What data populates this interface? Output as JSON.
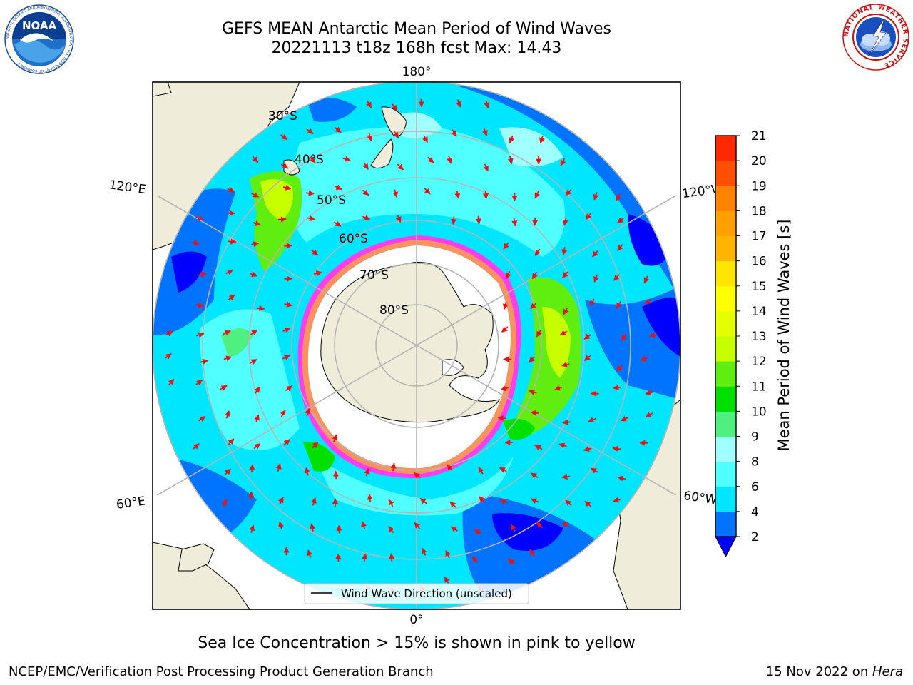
{
  "header": {
    "title_line1": "GEFS MEAN Antarctic Mean Period of Wind Waves",
    "title_line2": "20221113 t18z 168h fcst   Max: 14.43"
  },
  "logos": {
    "left": "NOAA",
    "left_ring_text": "NATIONAL OCEANIC AND ATMOSPHERIC ADMINISTRATION · U.S. DEPARTMENT OF COMMERCE",
    "right_ring_text": "NATIONAL WEATHER SERVICE"
  },
  "map": {
    "projection": "south polar stereographic",
    "longitude_labels": {
      "top": "180°",
      "bottom": "0°",
      "upper_left": "120°E",
      "upper_right": "120°W",
      "lower_left": "60°E",
      "lower_right": "60°W"
    },
    "latitude_labels": [
      "30°S",
      "40°S",
      "50°S",
      "60°S",
      "70°S",
      "80°S"
    ],
    "legend_label": "Wind Wave Direction (unscaled)",
    "colors": {
      "land": "#efedda",
      "ice_fill": "#ffffff",
      "ice_edge_pink": "#ff3cf0",
      "ice_edge_yellow": "#f5b030",
      "arrow": "#ee1111",
      "grid": "#b5b5b5"
    }
  },
  "colorbar": {
    "label": "Mean Period of Wind Waves [s]",
    "ticks": [
      "2",
      "4",
      "6",
      "8",
      "9",
      "10",
      "11",
      "12",
      "13",
      "14",
      "15",
      "16",
      "17",
      "18",
      "19",
      "20",
      "21"
    ],
    "bins": [
      {
        "from": 2,
        "to": 4,
        "color": "#0073ff"
      },
      {
        "from": 4,
        "to": 6,
        "color": "#00e6ff"
      },
      {
        "from": 6,
        "to": 8,
        "color": "#50ffff"
      },
      {
        "from": 8,
        "to": 9,
        "color": "#a0ffff"
      },
      {
        "from": 9,
        "to": 10,
        "color": "#50f080"
      },
      {
        "from": 10,
        "to": 11,
        "color": "#00e000"
      },
      {
        "from": 11,
        "to": 12,
        "color": "#60ee10"
      },
      {
        "from": 12,
        "to": 13,
        "color": "#c8ff00"
      },
      {
        "from": 13,
        "to": 14,
        "color": "#e6ff00"
      },
      {
        "from": 14,
        "to": 15,
        "color": "#ffff00"
      },
      {
        "from": 15,
        "to": 16,
        "color": "#ffe600"
      },
      {
        "from": 16,
        "to": 17,
        "color": "#ffb400"
      },
      {
        "from": 17,
        "to": 18,
        "color": "#ffa000"
      },
      {
        "from": 18,
        "to": 19,
        "color": "#ff8200"
      },
      {
        "from": 19,
        "to": 20,
        "color": "#ff5000"
      },
      {
        "from": 20,
        "to": 21,
        "color": "#ff2800"
      }
    ],
    "under_color": "#0000ff"
  },
  "caption": "Sea Ice Concentration > 15% is shown in pink to yellow",
  "footer": {
    "left": "NCEP/EMC/Verification Post Processing Product Generation Branch",
    "date": "15 Nov 2022 on ",
    "host": "Hera"
  }
}
